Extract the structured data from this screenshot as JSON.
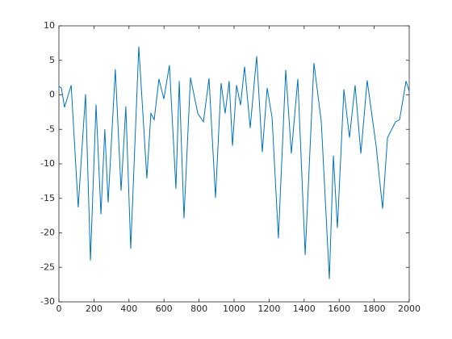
{
  "chart_data": {
    "type": "line",
    "x": [
      0,
      14,
      32,
      70,
      110,
      152,
      180,
      212,
      240,
      262,
      281,
      322,
      355,
      382,
      410,
      456,
      502,
      525,
      544,
      571,
      599,
      631,
      668,
      687,
      714,
      751,
      793,
      825,
      857,
      894,
      926,
      949,
      972,
      991,
      1014,
      1037,
      1060,
      1092,
      1129,
      1161,
      1189,
      1217,
      1253,
      1295,
      1327,
      1364,
      1406,
      1456,
      1498,
      1544,
      1567,
      1590,
      1627,
      1659,
      1691,
      1724,
      1760,
      1811,
      1848,
      1876,
      1922,
      1945,
      1982,
      2000
    ],
    "series": [
      {
        "color": "#0072bd",
        "values": [
          1.2,
          1.0,
          -1.8,
          1.4,
          -16.3,
          0.1,
          -24,
          -1.4,
          -17.3,
          -5,
          -15.6,
          3.7,
          -13.9,
          -1.7,
          -22.3,
          7,
          -12.1,
          -2.7,
          -3.6,
          2.3,
          -0.6,
          4.3,
          -13.6,
          2,
          -17.9,
          2.5,
          -2.7,
          -3.9,
          2.4,
          -14.9,
          1.7,
          -2.7,
          2,
          -7.4,
          1.4,
          -1.5,
          4.1,
          -4.8,
          5.6,
          -8.3,
          1,
          -3.3,
          -20.8,
          3.6,
          -8.5,
          2.3,
          -23.2,
          4.6,
          -3.9,
          -26.7,
          -8.8,
          -19.3,
          0.8,
          -6.2,
          1.4,
          -8.5,
          2.1,
          -7.4,
          -16.5,
          -6.2,
          -3.9,
          -3.6,
          2,
          0.5
        ]
      }
    ],
    "xlim": [
      0,
      2000
    ],
    "xticks": [
      0,
      200,
      400,
      600,
      800,
      1000,
      1200,
      1400,
      1600,
      1800,
      2000
    ],
    "ylim": [
      -30,
      10
    ],
    "yticks": [
      -30,
      -25,
      -20,
      -15,
      -10,
      -5,
      0,
      5,
      10
    ]
  }
}
